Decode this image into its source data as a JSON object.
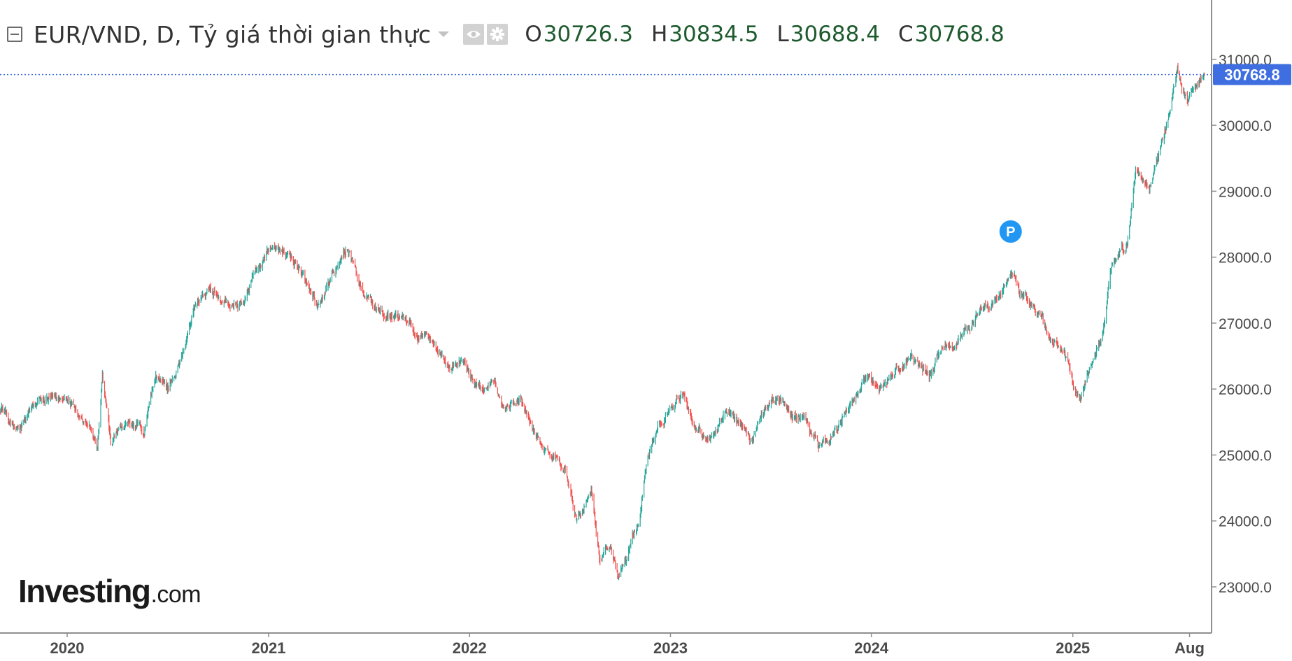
{
  "header": {
    "symbol_title": "EUR/VND, D, Tỷ giá thời gian thực",
    "ohlc": [
      {
        "key": "O",
        "value": "30726.3"
      },
      {
        "key": "H",
        "value": "30834.5"
      },
      {
        "key": "L",
        "value": "30688.4"
      },
      {
        "key": "C",
        "value": "30768.8"
      }
    ],
    "icons": [
      "collapse-icon",
      "dropdown-icon",
      "eye-icon",
      "settings-gear-icon"
    ]
  },
  "logo": {
    "main": "Investing",
    "suffix": ".com"
  },
  "marker": {
    "label": "P",
    "date": "2024-09-10"
  },
  "colors": {
    "up": "#26a69a",
    "down": "#ef5350",
    "price_line": "#3f6ee0",
    "price_label_bg": "#3f6ee0",
    "marker_bg": "#2196f3",
    "axis_line": "#8f8f8f",
    "axis_text": "#4a4a4a"
  },
  "chart_data": {
    "type": "candlestick",
    "x_ticks": [
      {
        "label": "2020",
        "date": "2020-01-01"
      },
      {
        "label": "2021",
        "date": "2021-01-01"
      },
      {
        "label": "2022",
        "date": "2022-01-01"
      },
      {
        "label": "2023",
        "date": "2023-01-01"
      },
      {
        "label": "2024",
        "date": "2024-01-01"
      },
      {
        "label": "2025",
        "date": "2025-01-01"
      },
      {
        "label": "Aug",
        "date": "2025-08-01"
      }
    ],
    "y_ticks": [
      23000,
      24000,
      25000,
      26000,
      27000,
      28000,
      29000,
      30000,
      31000
    ],
    "y_tick_labels": [
      "23000.0",
      "24000.0",
      "25000.0",
      "26000.0",
      "27000.0",
      "28000.0",
      "29000.0",
      "30000.0",
      "31000.0"
    ],
    "xlim": [
      "2019-09-01",
      "2025-09-10"
    ],
    "ylim": [
      22300,
      31900
    ],
    "last_price": 30768.8,
    "last_price_label": "30768.8",
    "close_path": [
      [
        "2019-09-01",
        25700
      ],
      [
        "2019-10-01",
        25400
      ],
      [
        "2019-11-01",
        25750
      ],
      [
        "2019-12-10",
        25900
      ],
      [
        "2020-01-15",
        25750
      ],
      [
        "2020-02-10",
        25400
      ],
      [
        "2020-02-25",
        25100
      ],
      [
        "2020-03-05",
        26200
      ],
      [
        "2020-03-20",
        25200
      ],
      [
        "2020-04-15",
        25500
      ],
      [
        "2020-05-20",
        25400
      ],
      [
        "2020-06-10",
        26200
      ],
      [
        "2020-07-01",
        26000
      ],
      [
        "2020-07-25",
        26400
      ],
      [
        "2020-08-20",
        27300
      ],
      [
        "2020-09-20",
        27500
      ],
      [
        "2020-10-10",
        27300
      ],
      [
        "2020-11-05",
        27300
      ],
      [
        "2020-12-05",
        27700
      ],
      [
        "2021-01-06",
        28200
      ],
      [
        "2021-02-01",
        28000
      ],
      [
        "2021-03-01",
        27800
      ],
      [
        "2021-03-30",
        27200
      ],
      [
        "2021-05-01",
        27800
      ],
      [
        "2021-05-25",
        28200
      ],
      [
        "2021-06-20",
        27400
      ],
      [
        "2021-07-10",
        27300
      ],
      [
        "2021-08-20",
        27100
      ],
      [
        "2021-09-20",
        26900
      ],
      [
        "2021-10-20",
        26800
      ],
      [
        "2021-11-25",
        26300
      ],
      [
        "2021-12-20",
        26400
      ],
      [
        "2022-01-20",
        26000
      ],
      [
        "2022-02-15",
        26100
      ],
      [
        "2022-03-07",
        25700
      ],
      [
        "2022-04-05",
        25900
      ],
      [
        "2022-04-25",
        25400
      ],
      [
        "2022-05-15",
        25000
      ],
      [
        "2022-06-08",
        25000
      ],
      [
        "2022-06-25",
        24800
      ],
      [
        "2022-07-14",
        24000
      ],
      [
        "2022-08-10",
        24500
      ],
      [
        "2022-08-25",
        23400
      ],
      [
        "2022-09-15",
        23600
      ],
      [
        "2022-09-28",
        23100
      ],
      [
        "2022-10-15",
        23500
      ],
      [
        "2022-11-05",
        24000
      ],
      [
        "2022-11-20",
        25000
      ],
      [
        "2022-12-10",
        25500
      ],
      [
        "2023-01-05",
        25700
      ],
      [
        "2023-01-26",
        25900
      ],
      [
        "2023-02-15",
        25400
      ],
      [
        "2023-03-10",
        25200
      ],
      [
        "2023-04-10",
        25600
      ],
      [
        "2023-05-05",
        25500
      ],
      [
        "2023-05-30",
        25200
      ],
      [
        "2023-06-20",
        25600
      ],
      [
        "2023-07-15",
        25900
      ],
      [
        "2023-08-10",
        25600
      ],
      [
        "2023-09-05",
        25500
      ],
      [
        "2023-09-26",
        25100
      ],
      [
        "2023-10-20",
        25300
      ],
      [
        "2023-11-20",
        25700
      ],
      [
        "2023-12-25",
        26200
      ],
      [
        "2024-01-15",
        26000
      ],
      [
        "2024-02-10",
        26200
      ],
      [
        "2024-03-10",
        26500
      ],
      [
        "2024-04-15",
        26200
      ],
      [
        "2024-05-10",
        26600
      ],
      [
        "2024-06-15",
        26800
      ],
      [
        "2024-07-15",
        27200
      ],
      [
        "2024-08-10",
        27300
      ],
      [
        "2024-09-10",
        27800
      ],
      [
        "2024-09-25",
        27500
      ],
      [
        "2024-10-20",
        27300
      ],
      [
        "2024-11-20",
        26800
      ],
      [
        "2024-12-15",
        26500
      ],
      [
        "2025-01-13",
        25800
      ],
      [
        "2025-02-05",
        26400
      ],
      [
        "2025-02-25",
        26800
      ],
      [
        "2025-03-10",
        27800
      ],
      [
        "2025-04-10",
        28200
      ],
      [
        "2025-04-25",
        29300
      ],
      [
        "2025-05-20",
        29000
      ],
      [
        "2025-06-25",
        30200
      ],
      [
        "2025-07-10",
        30900
      ],
      [
        "2025-07-28",
        30300
      ],
      [
        "2025-08-15",
        30550
      ],
      [
        "2025-08-28",
        30768.8
      ]
    ]
  }
}
